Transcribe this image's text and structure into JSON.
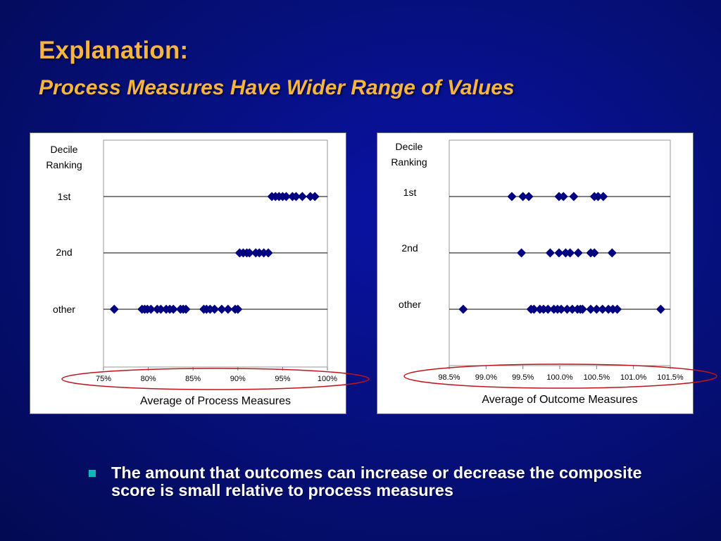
{
  "slide": {
    "title": "Explanation:",
    "subtitle": "Process Measures Have Wider Range of Values",
    "bullet": "The amount that outcomes can increase or decrease the composite score is small relative to process measures"
  },
  "colors": {
    "title": "#f6b540",
    "marker": "#000080",
    "bullet": "#0fb7b7",
    "highlight_ellipse": "#c0141c"
  },
  "chart_data": [
    {
      "type": "scatter",
      "marker": "diamond",
      "xlabel": "Average of Process Measures",
      "ylabel": "Decile Ranking",
      "categories": [
        "1st",
        "2nd",
        "other"
      ],
      "xlim": [
        75,
        100
      ],
      "xticks": [
        75,
        80,
        85,
        90,
        95,
        100
      ],
      "tick_labels": [
        "75%",
        "80%",
        "85%",
        "90%",
        "95%",
        "100%"
      ],
      "grid": false,
      "series": [
        {
          "category": "1st",
          "x": [
            93.8,
            94.2,
            94.6,
            95.0,
            95.4,
            96.1,
            96.5,
            97.2,
            98.1,
            98.6
          ]
        },
        {
          "category": "2nd",
          "x": [
            90.2,
            90.6,
            91.0,
            91.3,
            92.0,
            92.4,
            92.9,
            93.4
          ]
        },
        {
          "category": "other",
          "x": [
            76.2,
            79.3,
            79.6,
            79.9,
            80.3,
            81.0,
            81.4,
            82.0,
            82.4,
            82.8,
            83.6,
            83.9,
            84.2,
            86.2,
            86.5,
            86.9,
            87.4,
            88.2,
            88.9,
            89.7,
            90.0
          ]
        }
      ]
    },
    {
      "type": "scatter",
      "marker": "diamond",
      "xlabel": "Average of Outcome Measures",
      "ylabel": "Decile Ranking",
      "categories": [
        "1st",
        "2nd",
        "other"
      ],
      "xlim": [
        98.5,
        101.5
      ],
      "xticks": [
        98.5,
        99.0,
        99.5,
        100.0,
        100.5,
        101.0,
        101.5
      ],
      "tick_labels": [
        "98.5%",
        "99.0%",
        "99.5%",
        "100.0%",
        "100.5%",
        "101.0%",
        "101.5%"
      ],
      "grid": false,
      "series": [
        {
          "category": "1st",
          "x": [
            99.35,
            99.5,
            99.58,
            99.99,
            100.05,
            100.19,
            100.47,
            100.52,
            100.59
          ]
        },
        {
          "category": "2nd",
          "x": [
            99.48,
            99.87,
            99.99,
            100.08,
            100.14,
            100.25,
            100.42,
            100.47,
            100.71
          ]
        },
        {
          "category": "other",
          "x": [
            98.69,
            99.61,
            99.65,
            99.73,
            99.78,
            99.84,
            99.92,
            99.97,
            100.02,
            100.1,
            100.17,
            100.24,
            100.28,
            100.31,
            100.42,
            100.5,
            100.58,
            100.66,
            100.72,
            100.78,
            101.37
          ]
        }
      ]
    }
  ]
}
